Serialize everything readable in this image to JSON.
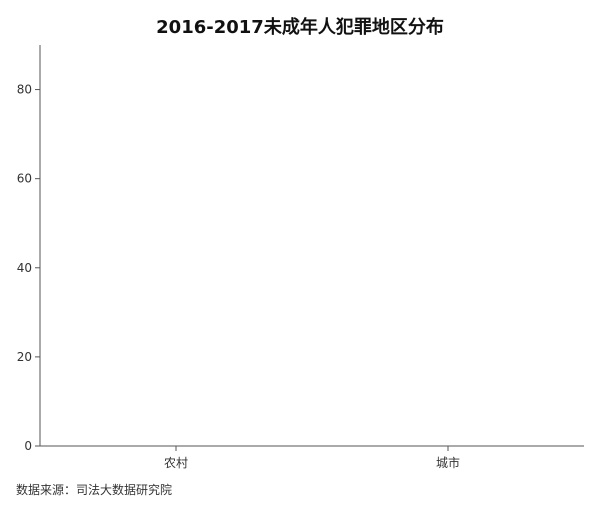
{
  "chart_data": {
    "type": "bar",
    "title": "2016-2017未成年人犯罪地区分布",
    "xlabel": "",
    "ylabel": "",
    "categories": [
      "农村",
      "城市"
    ],
    "values": [
      null,
      null
    ],
    "ylim": [
      0,
      90
    ],
    "yticks": [
      0,
      20,
      40,
      60,
      80
    ],
    "grid": false,
    "legend": "none",
    "source": "数据来源：司法大数据研究院"
  }
}
